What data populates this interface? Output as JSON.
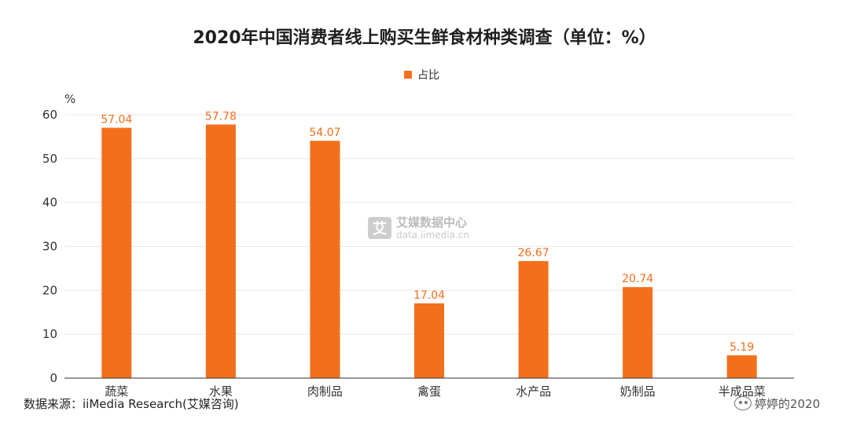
{
  "chart_data": {
    "type": "bar",
    "title": "2020年中国消费者线上购买生鲜食材种类调查（单位：%）",
    "unit_label": "%",
    "categories": [
      "蔬菜",
      "水果",
      "肉制品",
      "禽蛋",
      "水产品",
      "奶制品",
      "半成品菜"
    ],
    "series": [
      {
        "name": "占比",
        "color": "#f36f1c",
        "values": [
          57.04,
          57.78,
          54.07,
          17.04,
          26.67,
          20.74,
          5.19
        ],
        "labels": [
          "57.04",
          "57.78",
          "54.07",
          "17.04",
          "26.67",
          "20.74",
          "5.19"
        ]
      }
    ],
    "ylim": [
      0,
      60
    ],
    "yticks": [
      "0",
      "10",
      "20",
      "30",
      "40",
      "50",
      "60"
    ],
    "grid": true,
    "legend_position": "top-center"
  },
  "watermark": {
    "logo_glyph": "艾",
    "name": "艾媒数据中心",
    "url": "data.iimedia.cn"
  },
  "source": "数据来源：iiMedia Research(艾媒咨询)",
  "badge": {
    "icon": "wechat-icon",
    "text": "婷婷的2020"
  }
}
